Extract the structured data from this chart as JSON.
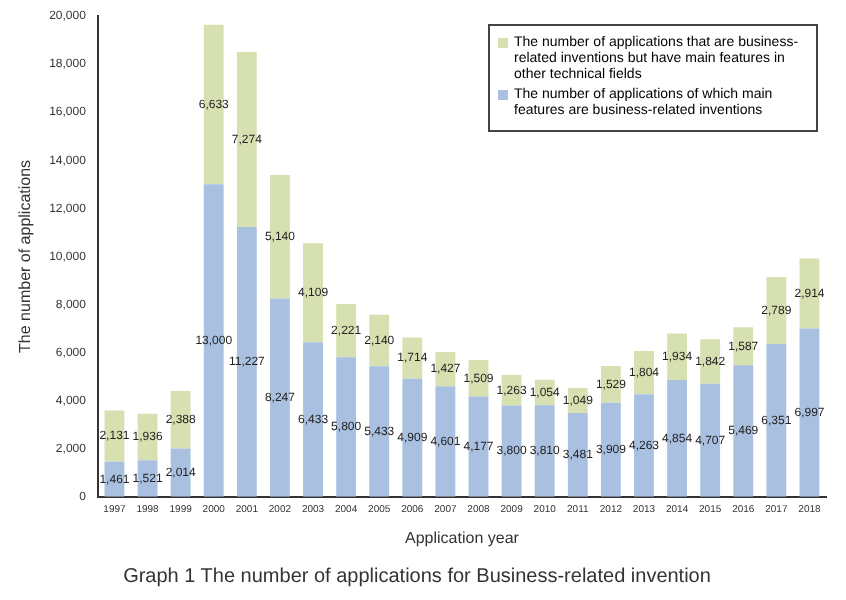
{
  "chart_data": {
    "type": "bar",
    "stacked": true,
    "title": "Graph 1 The number of applications for Business-related invention",
    "xlabel": "Application year",
    "ylabel": "The number of applications",
    "categories": [
      "1997",
      "1998",
      "1999",
      "2000",
      "2001",
      "2002",
      "2003",
      "2004",
      "2005",
      "2006",
      "2007",
      "2008",
      "2009",
      "2010",
      "2011",
      "2012",
      "2013",
      "2014",
      "2015",
      "2016",
      "2017",
      "2018"
    ],
    "series": [
      {
        "name": "The number of applications of which main features are business-related inventions",
        "color": "#a9c0e0",
        "values": [
          1461,
          1521,
          2014,
          13000,
          11227,
          8247,
          6433,
          5800,
          5433,
          4909,
          4601,
          4177,
          3800,
          3810,
          3481,
          3909,
          4263,
          4854,
          4707,
          5469,
          6351,
          6997
        ],
        "value_labels": [
          "1,461",
          "1,521",
          "2,014",
          "13,000",
          "11,227",
          "8,247",
          "6,433",
          "5,800",
          "5,433",
          "4,909",
          "4,601",
          "4,177",
          "3,800",
          "3,810",
          "3,481",
          "3,909",
          "4,263",
          "4,854",
          "4,707",
          "5,469",
          "6,351",
          "6,997"
        ]
      },
      {
        "name": "The number of applications that are business-related inventions but have main features in other technical fields",
        "color": "#d7e0b0",
        "values": [
          2131,
          1936,
          2388,
          6633,
          7274,
          5140,
          4109,
          2221,
          2140,
          1714,
          1427,
          1509,
          1263,
          1054,
          1049,
          1529,
          1804,
          1934,
          1842,
          1587,
          2789,
          2914
        ],
        "value_labels": [
          "2,131",
          "1,936",
          "2,388",
          "6,633",
          "7,274",
          "5,140",
          "4,109",
          "2,221",
          "2,140",
          "1,714",
          "1,427",
          "1,509",
          "1,263",
          "1,054",
          "1,049",
          "1,529",
          "1,804",
          "1,934",
          "1,842",
          "1,587",
          "2,789",
          "2,914"
        ]
      }
    ],
    "ylim": [
      0,
      20000
    ],
    "yticks": [
      0,
      {
        "value": 2000,
        "label": "2,000"
      },
      {
        "value": 4000,
        "label": "4,000"
      },
      {
        "value": 6000,
        "label": "6,000"
      },
      {
        "value": 8000,
        "label": "8,000"
      },
      {
        "value": 10000,
        "label": "10,000"
      },
      {
        "value": 12000,
        "label": "12,000"
      },
      {
        "value": 14000,
        "label": "14,000"
      },
      {
        "value": 16000,
        "label": "16,000"
      },
      {
        "value": 18000,
        "label": "18,000"
      },
      {
        "value": 20000,
        "label": "20,000"
      }
    ],
    "grid": false,
    "legend": "top right"
  }
}
